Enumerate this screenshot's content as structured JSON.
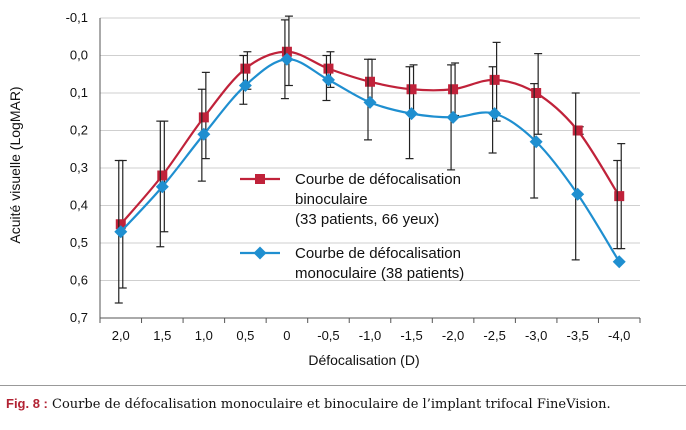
{
  "chart_data": {
    "type": "line",
    "title": "",
    "xlabel": "Défocalisation (D)",
    "ylabel": "Acuité visuelle (LogMAR)",
    "categories": [
      "2,0",
      "1,5",
      "1,0",
      "0,5",
      "0",
      "-0,5",
      "-1,0",
      "-1,5",
      "-2,0",
      "-2,5",
      "-3,0",
      "-3,5",
      "-4,0"
    ],
    "ylim": [
      -0.1,
      0.7
    ],
    "y_inverted": true,
    "y_ticks": [
      -0.1,
      0.0,
      0.1,
      0.2,
      0.3,
      0.4,
      0.5,
      0.6,
      0.7
    ],
    "y_tick_labels": [
      "-0,1",
      "0,0",
      "0,1",
      "0,2",
      "0,3",
      "0,4",
      "0,5",
      "0,6",
      "0,7"
    ],
    "grid": "horizontal",
    "legend_position": "center",
    "series": [
      {
        "name_lines": [
          "Courbe de défocalisation",
          "binoculaire",
          "(33 patients, 66 yeux)"
        ],
        "marker": "square",
        "color": "#c0223a",
        "values": [
          0.45,
          0.32,
          0.165,
          0.035,
          -0.01,
          0.035,
          0.07,
          0.09,
          0.09,
          0.065,
          0.1,
          0.2,
          0.375
        ],
        "err_low": [
          0.28,
          0.175,
          0.045,
          -0.01,
          -0.105,
          -0.01,
          0.01,
          0.025,
          0.02,
          -0.035,
          -0.005,
          0.19,
          0.235
        ],
        "err_high": [
          0.62,
          0.47,
          0.275,
          0.09,
          0.08,
          0.085,
          0.13,
          0.155,
          0.16,
          0.175,
          0.21,
          0.21,
          0.515
        ]
      },
      {
        "name_lines": [
          "Courbe de défocalisation",
          "monoculaire (38 patients)"
        ],
        "marker": "diamond",
        "color": "#1f8fd0",
        "values": [
          0.47,
          0.35,
          0.21,
          0.08,
          0.01,
          0.065,
          0.125,
          0.155,
          0.165,
          0.155,
          0.23,
          0.37,
          0.55
        ],
        "err_low": [
          0.28,
          0.175,
          0.09,
          0.0,
          -0.095,
          0.0,
          0.01,
          0.03,
          0.025,
          0.03,
          0.075,
          0.1,
          0.28
        ],
        "err_high": [
          0.66,
          0.51,
          0.335,
          0.13,
          0.115,
          0.12,
          0.225,
          0.275,
          0.305,
          0.26,
          0.38,
          0.545,
          0.515
        ]
      }
    ]
  },
  "caption": {
    "label": "Fig. 8 :",
    "text": " Courbe de défocalisation monoculaire et binoculaire de l’implant trifocal FineVision."
  }
}
